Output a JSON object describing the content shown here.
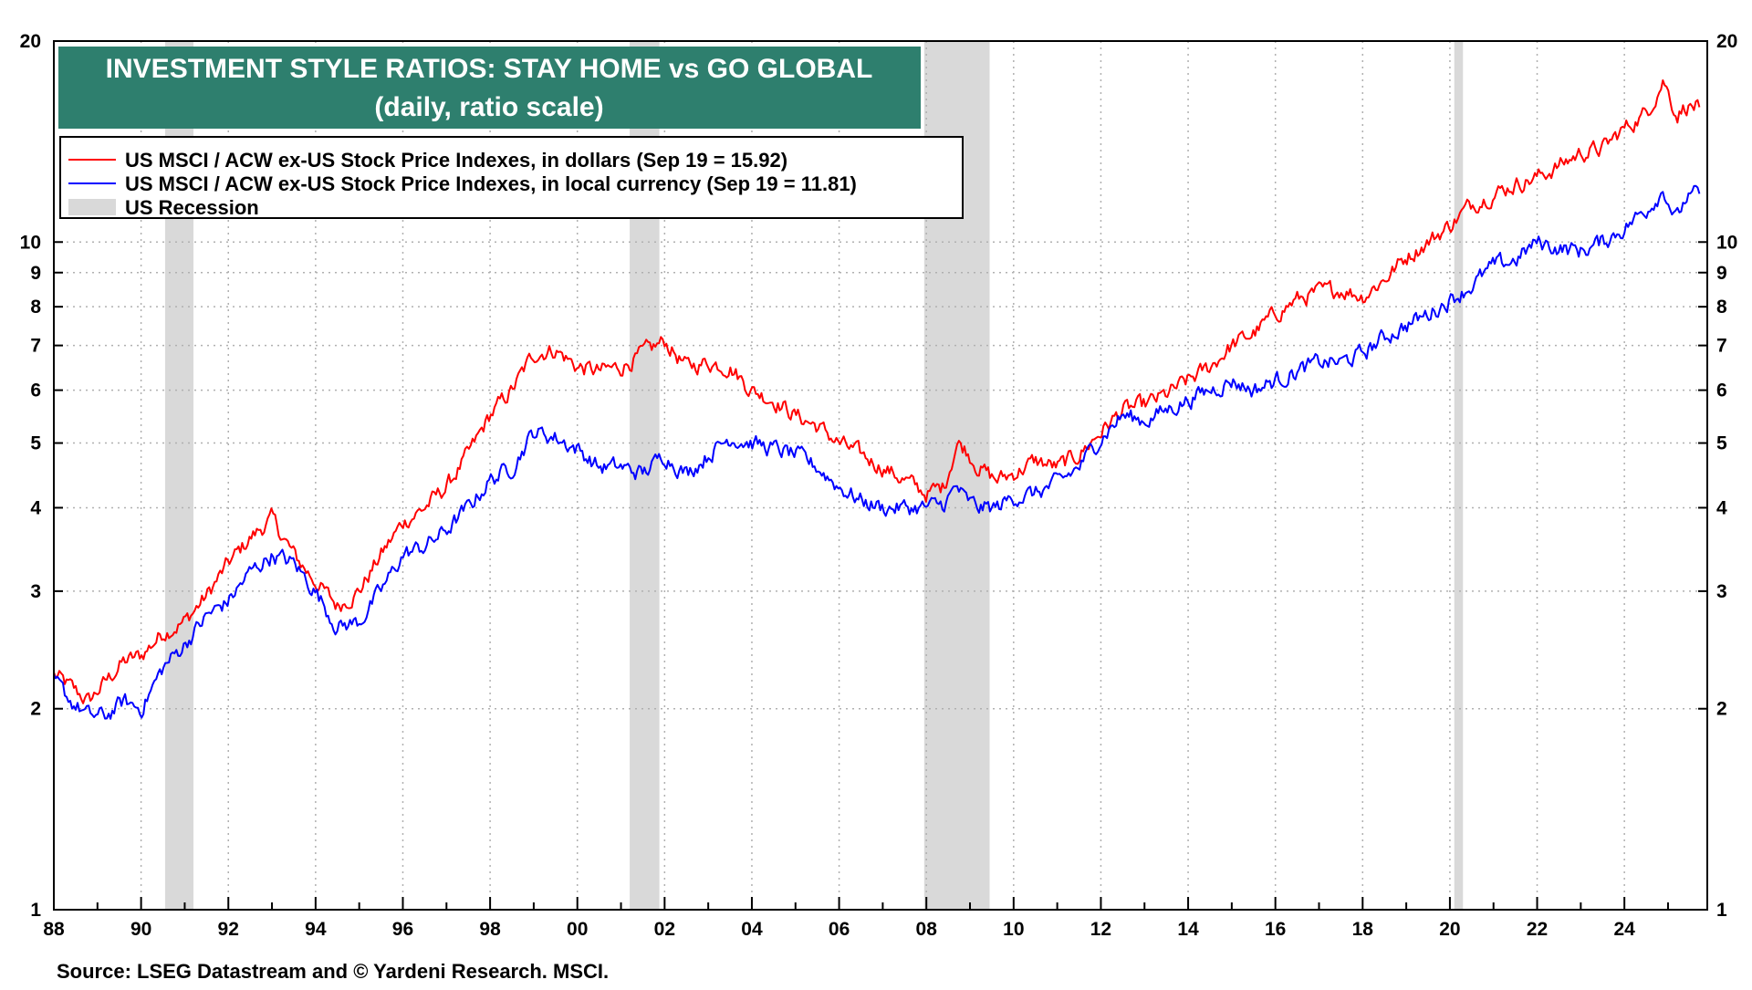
{
  "chart_data": {
    "type": "line",
    "title": "INVESTMENT STYLE RATIOS: STAY HOME vs GO GLOBAL",
    "subtitle": "(daily, ratio scale)",
    "source": "Source: LSEG Datastream and © Yardeni Research. MSCI.",
    "x_axis": {
      "range": [
        1988,
        2025.9
      ],
      "tick_values": [
        1988,
        1990,
        1992,
        1994,
        1996,
        1998,
        2000,
        2002,
        2004,
        2006,
        2008,
        2010,
        2012,
        2014,
        2016,
        2018,
        2020,
        2022,
        2024
      ],
      "tick_labels": [
        "88",
        "90",
        "92",
        "94",
        "96",
        "98",
        "00",
        "02",
        "04",
        "06",
        "08",
        "10",
        "12",
        "14",
        "16",
        "18",
        "20",
        "22",
        "24"
      ]
    },
    "y_axis": {
      "scale": "log",
      "range": [
        1,
        20
      ],
      "tick_values": [
        1,
        2,
        3,
        4,
        5,
        6,
        7,
        8,
        9,
        10,
        20
      ],
      "tick_labels": [
        "1",
        "2",
        "3",
        "4",
        "5",
        "6",
        "7",
        "8",
        "9",
        "10",
        "20"
      ]
    },
    "legend": {
      "placement": "top-left",
      "entries": [
        {
          "label": "US MSCI / ACW ex-US Stock Price Indexes, in dollars (Sep 19 = 15.92)",
          "color": "#ff0000",
          "kind": "line"
        },
        {
          "label": "US MSCI / ACW ex-US Stock Price Indexes, in local currency (Sep 19 = 11.81)",
          "color": "#0000ff",
          "kind": "line"
        },
        {
          "label": "US Recession",
          "color": "#d9d9d9",
          "kind": "area"
        }
      ]
    },
    "recessions": [
      {
        "start": 1990.55,
        "end": 1991.2
      },
      {
        "start": 2001.2,
        "end": 2001.88
      },
      {
        "start": 2007.95,
        "end": 2009.45
      },
      {
        "start": 2020.1,
        "end": 2020.3
      }
    ],
    "series": [
      {
        "name": "US MSCI / ACW ex-US Stock Price Indexes, in dollars",
        "color": "#ff0000",
        "x": [
          1988.0,
          1988.4,
          1988.8,
          1989.2,
          1989.6,
          1990.0,
          1990.5,
          1991.0,
          1991.5,
          1992.0,
          1992.5,
          1993.0,
          1993.5,
          1994.0,
          1994.5,
          1995.0,
          1995.5,
          1996.0,
          1996.5,
          1997.0,
          1997.5,
          1998.0,
          1998.5,
          1999.0,
          1999.5,
          2000.0,
          2000.5,
          2001.0,
          2001.5,
          2002.0,
          2002.5,
          2003.0,
          2003.5,
          2004.0,
          2004.5,
          2005.0,
          2005.5,
          2006.0,
          2006.5,
          2007.0,
          2007.5,
          2008.0,
          2008.4,
          2008.7,
          2008.9,
          2009.2,
          2009.6,
          2010.0,
          2010.5,
          2011.0,
          2011.5,
          2012.0,
          2012.5,
          2013.0,
          2013.5,
          2014.0,
          2014.5,
          2015.0,
          2015.5,
          2016.0,
          2016.5,
          2017.0,
          2017.5,
          2018.0,
          2018.5,
          2019.0,
          2019.5,
          2020.0,
          2020.5,
          2021.0,
          2021.5,
          2022.0,
          2022.5,
          2023.0,
          2023.5,
          2024.0,
          2024.5,
          2024.9,
          2025.2,
          2025.4,
          2025.72
        ],
        "values": [
          2.25,
          2.15,
          2.05,
          2.2,
          2.35,
          2.4,
          2.6,
          2.7,
          2.95,
          3.3,
          3.6,
          3.85,
          3.4,
          3.1,
          2.85,
          3.0,
          3.4,
          3.8,
          4.0,
          4.3,
          4.8,
          5.5,
          6.0,
          6.8,
          6.9,
          6.5,
          6.4,
          6.5,
          6.8,
          7.1,
          6.5,
          6.6,
          6.5,
          6.0,
          5.8,
          5.5,
          5.3,
          5.0,
          4.8,
          4.6,
          4.4,
          4.2,
          4.3,
          5.0,
          4.9,
          4.6,
          4.4,
          4.5,
          4.7,
          4.6,
          4.8,
          5.2,
          5.6,
          5.7,
          5.9,
          6.2,
          6.5,
          7.0,
          7.3,
          7.8,
          8.2,
          8.4,
          8.5,
          8.3,
          8.8,
          9.5,
          10.0,
          10.6,
          11.4,
          11.8,
          12.2,
          12.5,
          13.0,
          13.6,
          13.8,
          14.8,
          15.6,
          17.5,
          15.5,
          16.0,
          15.92
        ]
      },
      {
        "name": "US MSCI / ACW ex-US Stock Price Indexes, in local currency",
        "color": "#0000ff",
        "x": [
          1988.0,
          1988.4,
          1988.8,
          1989.2,
          1989.6,
          1990.0,
          1990.5,
          1991.0,
          1991.5,
          1992.0,
          1992.5,
          1993.0,
          1993.5,
          1994.0,
          1994.5,
          1995.0,
          1995.5,
          1996.0,
          1996.5,
          1997.0,
          1997.5,
          1998.0,
          1998.5,
          1999.0,
          1999.5,
          2000.0,
          2000.5,
          2001.0,
          2001.5,
          2002.0,
          2002.5,
          2003.0,
          2003.5,
          2004.0,
          2004.5,
          2005.0,
          2005.5,
          2006.0,
          2006.5,
          2007.0,
          2007.5,
          2008.0,
          2008.4,
          2008.7,
          2008.9,
          2009.2,
          2009.6,
          2010.0,
          2010.5,
          2011.0,
          2011.5,
          2012.0,
          2012.5,
          2013.0,
          2013.5,
          2014.0,
          2014.5,
          2015.0,
          2015.5,
          2016.0,
          2016.5,
          2017.0,
          2017.5,
          2018.0,
          2018.5,
          2019.0,
          2019.5,
          2020.0,
          2020.5,
          2021.0,
          2021.5,
          2022.0,
          2022.5,
          2023.0,
          2023.5,
          2024.0,
          2024.5,
          2024.9,
          2025.2,
          2025.4,
          2025.72
        ],
        "values": [
          2.2,
          2.05,
          1.95,
          1.95,
          2.05,
          2.0,
          2.3,
          2.5,
          2.75,
          2.9,
          3.2,
          3.4,
          3.3,
          3.0,
          2.65,
          2.7,
          3.0,
          3.4,
          3.5,
          3.7,
          4.0,
          4.4,
          4.6,
          5.2,
          5.1,
          4.9,
          4.6,
          4.6,
          4.5,
          4.8,
          4.5,
          4.8,
          5.1,
          5.0,
          4.9,
          4.8,
          4.6,
          4.3,
          4.1,
          4.0,
          4.0,
          4.0,
          4.05,
          4.3,
          4.1,
          4.0,
          4.0,
          4.15,
          4.2,
          4.35,
          4.6,
          5.1,
          5.5,
          5.4,
          5.6,
          5.8,
          6.0,
          6.2,
          6.0,
          6.2,
          6.4,
          6.6,
          6.6,
          6.8,
          7.2,
          7.5,
          7.8,
          8.2,
          8.6,
          9.2,
          9.4,
          10.0,
          9.8,
          9.7,
          10.0,
          10.5,
          11.2,
          12.0,
          10.8,
          11.6,
          11.81
        ]
      }
    ]
  }
}
